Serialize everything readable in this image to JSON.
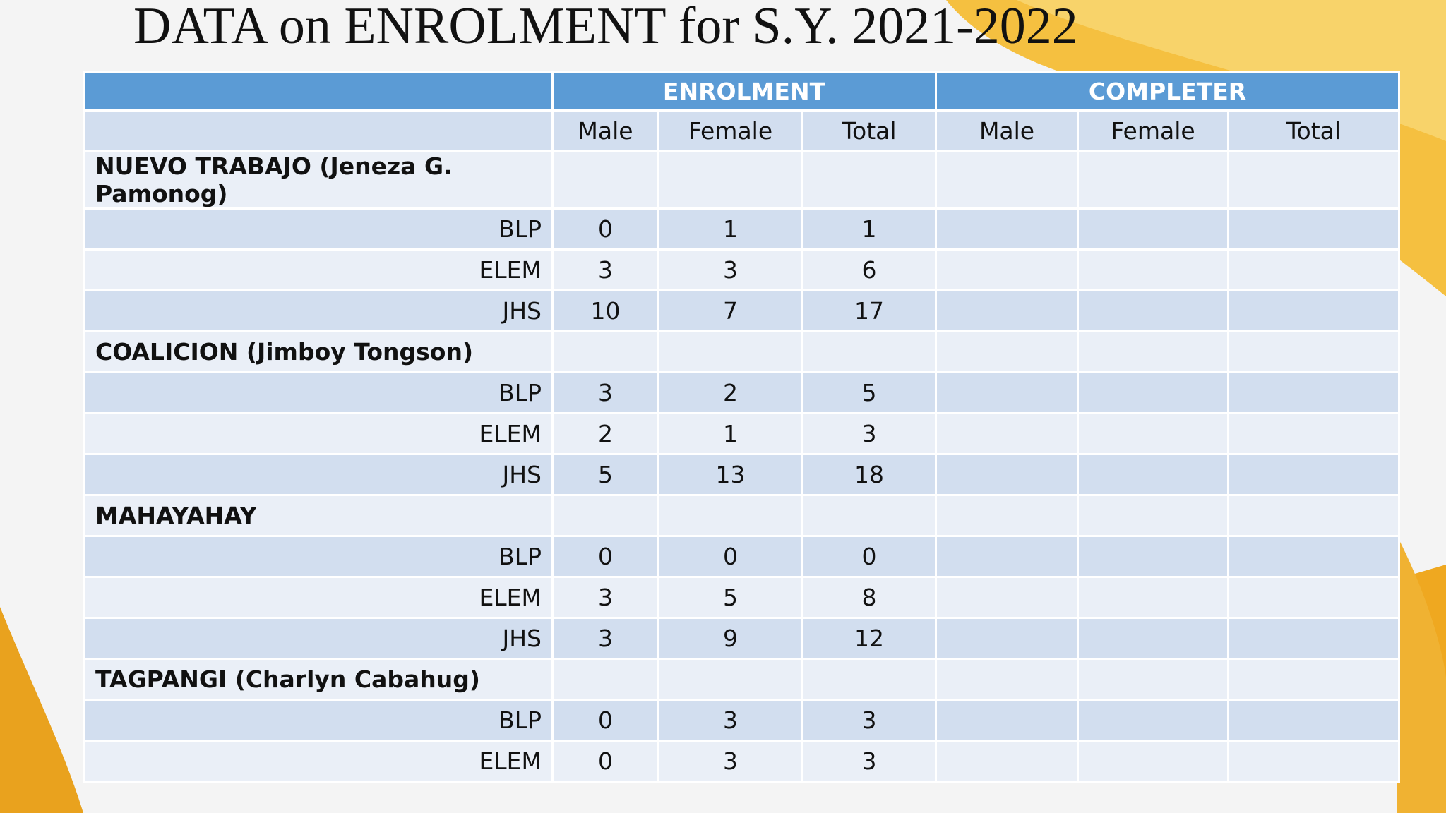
{
  "header": {
    "title": "DATA on ENROLMENT for S.Y. 2021-2022"
  },
  "table": {
    "group_headers": [
      "ENROLMENT",
      "COMPLETER"
    ],
    "sub_headers": [
      "Male",
      "Female",
      "Total",
      "Male",
      "Female",
      "Total"
    ],
    "sections": [
      {
        "name": "NUEVO TRABAJO (Jeneza G. Pamonog)",
        "rows": [
          {
            "level": "BLP",
            "values": [
              0,
              1,
              1
            ]
          },
          {
            "level": "ELEM",
            "values": [
              3,
              3,
              6
            ]
          },
          {
            "level": "JHS",
            "values": [
              10,
              7,
              17
            ]
          }
        ]
      },
      {
        "name": "COALICION (Jimboy Tongson)",
        "rows": [
          {
            "level": "BLP",
            "values": [
              3,
              2,
              5
            ]
          },
          {
            "level": "ELEM",
            "values": [
              2,
              1,
              3
            ]
          },
          {
            "level": "JHS",
            "values": [
              5,
              13,
              18
            ]
          }
        ]
      },
      {
        "name": "MAHAYAHAY",
        "rows": [
          {
            "level": "BLP",
            "values": [
              0,
              0,
              0
            ]
          },
          {
            "level": "ELEM",
            "values": [
              3,
              5,
              8
            ]
          },
          {
            "level": "JHS",
            "values": [
              3,
              9,
              12
            ]
          }
        ]
      },
      {
        "name": "TAGPANGI (Charlyn Cabahug)",
        "rows": [
          {
            "level": "BLP",
            "values": [
              0,
              3,
              3
            ]
          },
          {
            "level": "ELEM",
            "values": [
              0,
              3,
              3
            ]
          }
        ]
      }
    ]
  }
}
